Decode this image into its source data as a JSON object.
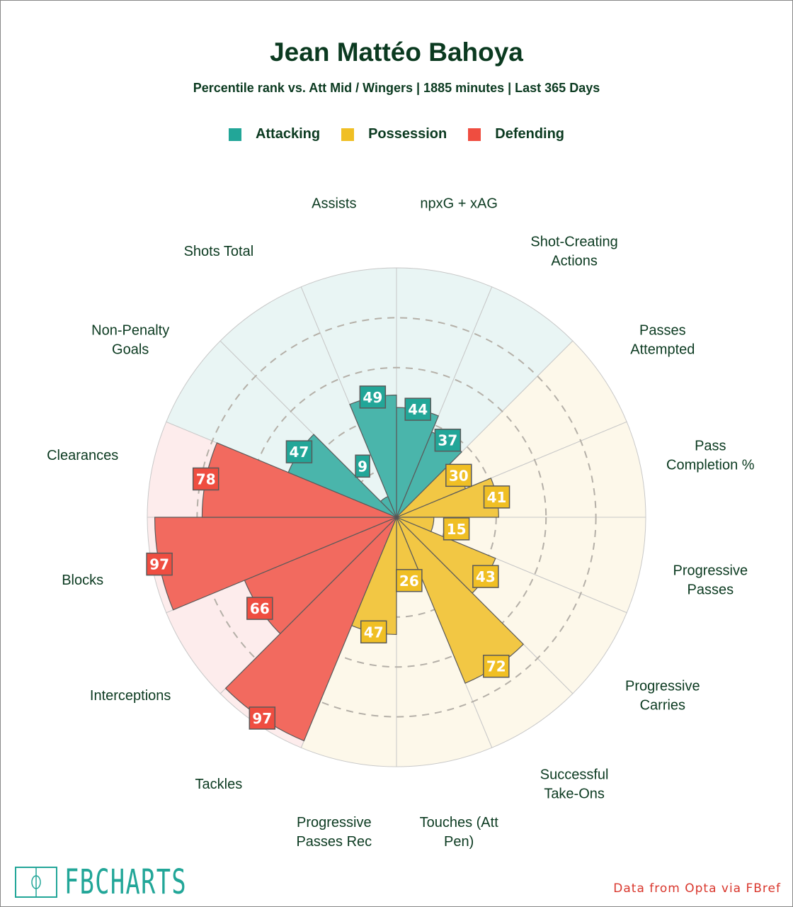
{
  "title": "Jean Mattéo Bahoya",
  "subtitle": "Percentile rank vs. Att Mid / Wingers | 1885 minutes | Last 365 Days",
  "legend": [
    {
      "label": "Attacking",
      "color": "#22a698"
    },
    {
      "label": "Possession",
      "color": "#f0bf24"
    },
    {
      "label": "Defending",
      "color": "#ef4d40"
    }
  ],
  "source": "Data from Opta via FBref",
  "logo": "FBCHARTS",
  "chart_data": {
    "type": "polar-bar",
    "title": "Jean Mattéo Bahoya",
    "rmax": 100,
    "gridlines": [
      20,
      40,
      60,
      80
    ],
    "categories": [
      "npxG + xAG",
      "Shot-Creating Actions",
      "Passes Attempted",
      "Pass Completion %",
      "Progressive Passes",
      "Progressive Carries",
      "Successful Take-Ons",
      "Touches (Att Pen)",
      "Progressive Passes Rec",
      "Tackles",
      "Interceptions",
      "Blocks",
      "Clearances",
      "Non-Penalty Goals",
      "Shots Total",
      "Assists"
    ],
    "label_lines": [
      [
        "npxG + xAG"
      ],
      [
        "Shot-Creating",
        "Actions"
      ],
      [
        "Passes",
        "Attempted"
      ],
      [
        "Pass",
        "Completion %"
      ],
      [
        "Progressive",
        "Passes"
      ],
      [
        "Progressive",
        "Carries"
      ],
      [
        "Successful",
        "Take-Ons"
      ],
      [
        "Touches (Att",
        "Pen)"
      ],
      [
        "Progressive",
        "Passes Rec"
      ],
      [
        "Tackles"
      ],
      [
        "Interceptions"
      ],
      [
        "Blocks"
      ],
      [
        "Clearances"
      ],
      [
        "Non-Penalty",
        "Goals"
      ],
      [
        "Shots Total"
      ],
      [
        "Assists"
      ]
    ],
    "groups": [
      "Attacking",
      "Attacking",
      "Possession",
      "Possession",
      "Possession",
      "Possession",
      "Possession",
      "Possession",
      "Possession",
      "Defending",
      "Defending",
      "Defending",
      "Defending",
      "Attacking",
      "Attacking",
      "Attacking"
    ],
    "values": [
      44,
      37,
      30,
      41,
      15,
      43,
      72,
      26,
      47,
      97,
      66,
      97,
      78,
      47,
      9,
      49
    ]
  }
}
